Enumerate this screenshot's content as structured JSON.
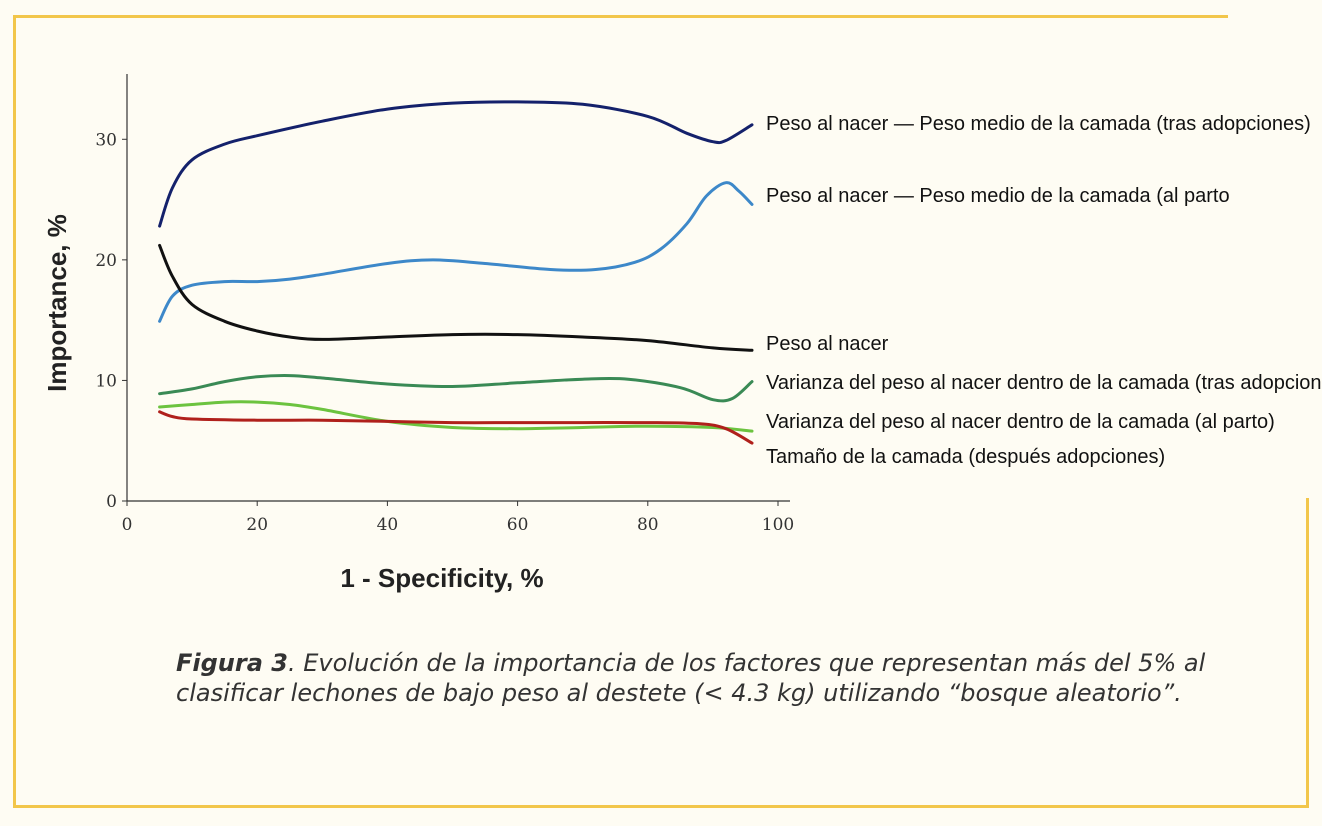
{
  "caption": {
    "label": "Figura 3",
    "text": ". Evolución de la importancia de los factores que representan más del 5% al clasificar lechones de bajo peso al destete (< 4.3 kg) utilizando “bosque aleatorio”."
  },
  "colors": {
    "frame": "#f2c64a",
    "background": "#fefcf3"
  },
  "chart_data": {
    "type": "line",
    "xlabel": "1 - Specificity, %",
    "ylabel": "Importance, %",
    "xlim": [
      0,
      100
    ],
    "ylim": [
      0,
      35
    ],
    "xticks": [
      0,
      20,
      40,
      60,
      80,
      100
    ],
    "yticks": [
      0,
      10,
      20,
      30
    ],
    "grid": false,
    "legend": "labels at right end of lines",
    "series": [
      {
        "name": "Peso al nacer — Peso medio de la camada (tras adopciones)",
        "color": "#14216b",
        "x": [
          5,
          7,
          10,
          15,
          20,
          30,
          40,
          50,
          60,
          70,
          80,
          86,
          90,
          92,
          96
        ],
        "y": [
          22.8,
          26.0,
          28.3,
          29.6,
          30.3,
          31.5,
          32.5,
          33.0,
          33.1,
          32.9,
          31.9,
          30.5,
          29.8,
          29.9,
          31.2
        ]
      },
      {
        "name": "Peso al nacer — Peso medio de la camada (al parto",
        "color": "#3d88c9",
        "x": [
          5,
          7,
          10,
          15,
          20,
          25,
          30,
          40,
          47,
          55,
          65,
          72,
          78,
          82,
          86,
          89,
          92,
          94,
          96
        ],
        "y": [
          14.9,
          17.0,
          17.9,
          18.2,
          18.2,
          18.4,
          18.8,
          19.7,
          20.0,
          19.7,
          19.2,
          19.2,
          19.8,
          20.9,
          23.0,
          25.3,
          26.4,
          25.7,
          24.6
        ]
      },
      {
        "name": "Peso al nacer",
        "color": "#111111",
        "x": [
          5,
          7,
          10,
          15,
          20,
          25,
          30,
          40,
          50,
          60,
          70,
          80,
          90,
          96
        ],
        "y": [
          21.2,
          18.6,
          16.3,
          14.9,
          14.1,
          13.6,
          13.4,
          13.6,
          13.8,
          13.8,
          13.6,
          13.3,
          12.7,
          12.5
        ]
      },
      {
        "name": "Varianza del peso al nacer dentro de la camada (tras adopciones)",
        "color": "#3a8a55",
        "x": [
          5,
          10,
          15,
          20,
          25,
          30,
          40,
          50,
          60,
          70,
          77,
          85,
          90,
          93,
          96
        ],
        "y": [
          8.9,
          9.3,
          9.9,
          10.3,
          10.4,
          10.2,
          9.7,
          9.5,
          9.8,
          10.1,
          10.1,
          9.4,
          8.4,
          8.5,
          9.9
        ]
      },
      {
        "name": "Varianza del peso al nacer dentro de la camada (al parto)",
        "color": "#6cc33f",
        "x": [
          5,
          10,
          15,
          20,
          25,
          30,
          40,
          50,
          60,
          70,
          80,
          90,
          96
        ],
        "y": [
          7.8,
          8.0,
          8.2,
          8.2,
          8.0,
          7.6,
          6.6,
          6.1,
          6.0,
          6.1,
          6.2,
          6.1,
          5.8
        ]
      },
      {
        "name": "Tamaño de la camada (después adopciones)",
        "color": "#b0201b",
        "x": [
          5,
          7,
          10,
          20,
          30,
          40,
          50,
          60,
          70,
          80,
          88,
          92,
          96
        ],
        "y": [
          7.4,
          7.0,
          6.8,
          6.7,
          6.7,
          6.6,
          6.5,
          6.5,
          6.5,
          6.5,
          6.4,
          6.0,
          4.8
        ]
      }
    ]
  }
}
